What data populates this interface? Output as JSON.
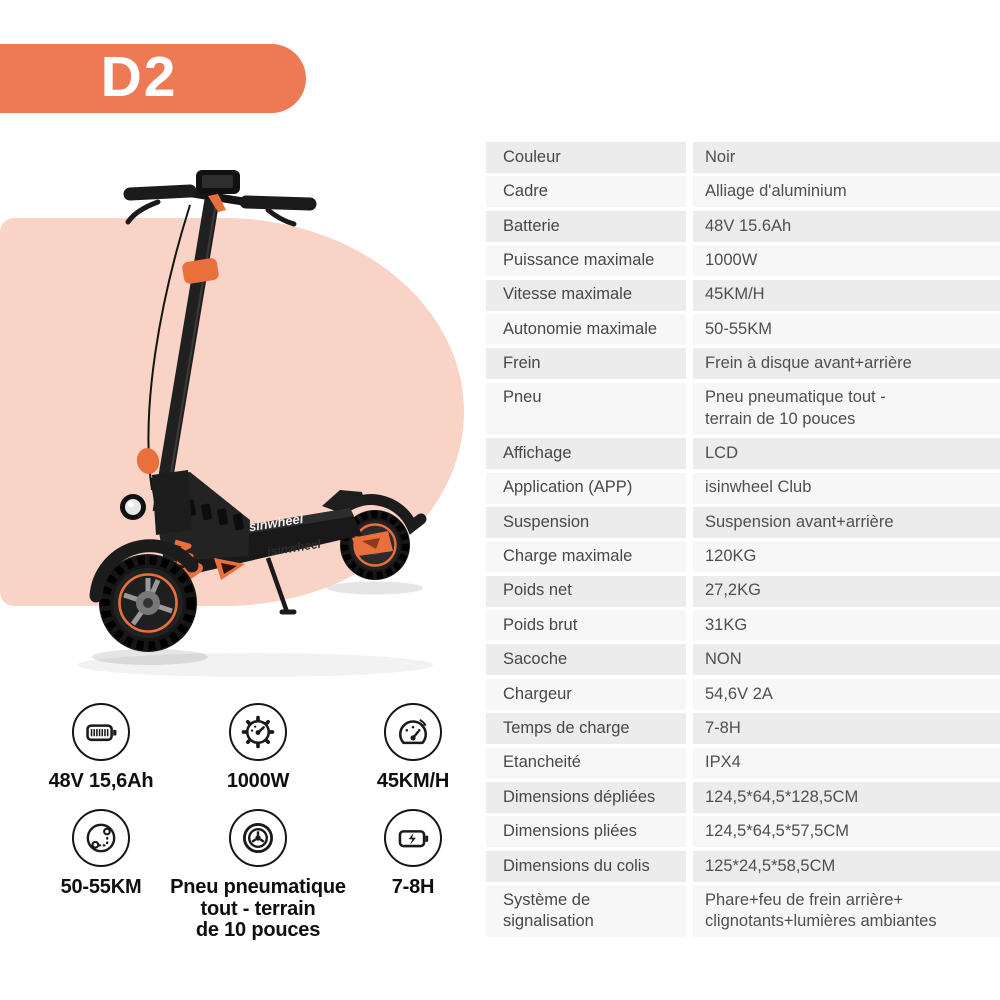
{
  "badge": {
    "label": "D2"
  },
  "scooter": {
    "deck_logo": "isinwheel"
  },
  "spec_table": {
    "rows": [
      {
        "label": "Couleur",
        "value": "Noir"
      },
      {
        "label": "Cadre",
        "value": "Alliage d'aluminium"
      },
      {
        "label": "Batterie",
        "value": "48V 15.6Ah"
      },
      {
        "label": "Puissance maximale",
        "value": "1000W"
      },
      {
        "label": "Vitesse maximale",
        "value": "45KM/H"
      },
      {
        "label": "Autonomie maximale",
        "value": "50-55KM"
      },
      {
        "label": "Frein",
        "value": "Frein à disque avant+arrière"
      },
      {
        "label": "Pneu",
        "value": "Pneu pneumatique tout -\nterrain de 10 pouces",
        "tall": true
      },
      {
        "label": "Affichage",
        "value": "LCD"
      },
      {
        "label": "Application (APP)",
        "value": "isinwheel Club"
      },
      {
        "label": "Suspension",
        "value": "Suspension avant+arrière"
      },
      {
        "label": "Charge maximale",
        "value": "120KG"
      },
      {
        "label": "Poids net",
        "value": "27,2KG"
      },
      {
        "label": "Poids brut",
        "value": "31KG"
      },
      {
        "label": "Sacoche",
        "value": "NON"
      },
      {
        "label": "Chargeur",
        "value": "54,6V 2A"
      },
      {
        "label": "Temps de charge",
        "value": "7-8H"
      },
      {
        "label": "Etancheité",
        "value": "IPX4"
      },
      {
        "label": "Dimensions dépliées",
        "value": "124,5*64,5*128,5CM"
      },
      {
        "label": "Dimensions pliées",
        "value": "124,5*64,5*57,5CM"
      },
      {
        "label": "Dimensions du colis",
        "value": "125*24,5*58,5CM"
      },
      {
        "label": "Système de\nsignalisation",
        "value": "Phare+feu de frein arrière+\nclignotants+lumières ambiantes",
        "tall": true
      }
    ]
  },
  "features": [
    {
      "icon": "battery-icon",
      "label": "48V 15,6Ah"
    },
    {
      "icon": "power-gear-icon",
      "label": "1000W"
    },
    {
      "icon": "speedometer-icon",
      "label": "45KM/H"
    },
    {
      "icon": "route-distance-icon",
      "label": "50-55KM"
    },
    {
      "icon": "offroad-tire-icon",
      "label": "Pneu pneumatique\ntout - terrain\nde 10 pouces"
    },
    {
      "icon": "charging-time-icon",
      "label": "7-8H"
    }
  ],
  "colors": {
    "accent_orange": "#ee7955",
    "scooter_orange": "#e9703c",
    "blob_pink": "#f9d3c6",
    "row_gray": "#ececec",
    "row_light": "#f7f7f7",
    "table_text": "#4b4b4b",
    "feature_text": "#0f0f0f"
  }
}
